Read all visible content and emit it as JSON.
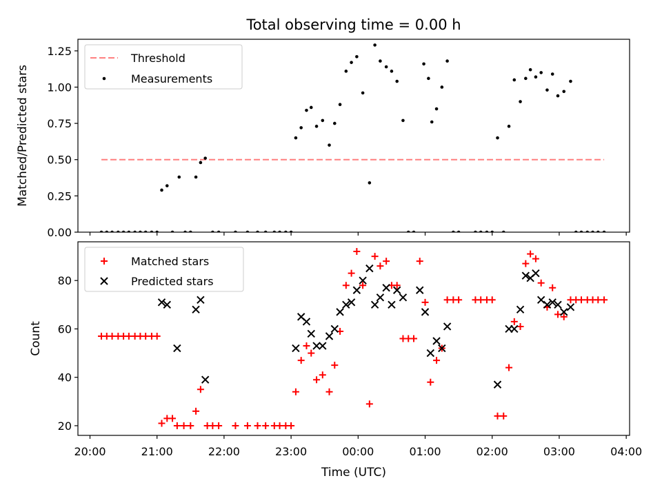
{
  "figure": {
    "title": "Total observing time = 0.00 h",
    "xlabel": "Time (UTC)"
  },
  "chart_data": [
    {
      "type": "scatter",
      "panel": "top",
      "title": "Total observing time = 0.00 h",
      "xlabel": "",
      "ylabel": "Matched/Predicted stars",
      "x_unit": "hours since 20:00 UTC",
      "xlim": [
        -0.18,
        8.05
      ],
      "ylim": [
        0,
        1.33
      ],
      "yticks": [
        0.0,
        0.25,
        0.5,
        0.75,
        1.0,
        1.25
      ],
      "ytick_labels": [
        "0.00",
        "0.25",
        "0.50",
        "0.75",
        "1.00",
        "1.25"
      ],
      "legend": {
        "placement": "top-left",
        "entries": [
          "Threshold",
          "Measurements"
        ]
      },
      "grid": false,
      "threshold": {
        "name": "Threshold",
        "color": "#ff7f7f",
        "style": "dashed",
        "y": 0.5,
        "x": [
          0.17,
          7.67
        ]
      },
      "series": [
        {
          "name": "Measurements",
          "color": "#000000",
          "marker": "dot",
          "points": [
            [
              0.17,
              0
            ],
            [
              0.25,
              0
            ],
            [
              0.33,
              0
            ],
            [
              0.42,
              0
            ],
            [
              0.5,
              0
            ],
            [
              0.58,
              0
            ],
            [
              0.67,
              0
            ],
            [
              0.75,
              0
            ],
            [
              0.83,
              0
            ],
            [
              0.92,
              0
            ],
            [
              1.0,
              0
            ],
            [
              1.07,
              0.29
            ],
            [
              1.15,
              0.32
            ],
            [
              1.23,
              0
            ],
            [
              1.33,
              0.38
            ],
            [
              1.42,
              0
            ],
            [
              1.5,
              0
            ],
            [
              1.58,
              0.38
            ],
            [
              1.65,
              0.48
            ],
            [
              1.72,
              0.51
            ],
            [
              1.83,
              0
            ],
            [
              1.92,
              0
            ],
            [
              2.17,
              0
            ],
            [
              2.35,
              0
            ],
            [
              2.5,
              0
            ],
            [
              2.62,
              0
            ],
            [
              2.75,
              0
            ],
            [
              2.83,
              0
            ],
            [
              2.92,
              0
            ],
            [
              3.0,
              0
            ],
            [
              3.07,
              0.65
            ],
            [
              3.15,
              0.72
            ],
            [
              3.23,
              0.84
            ],
            [
              3.3,
              0.86
            ],
            [
              3.38,
              0.73
            ],
            [
              3.47,
              0.77
            ],
            [
              3.57,
              0.6
            ],
            [
              3.65,
              0.75
            ],
            [
              3.73,
              0.88
            ],
            [
              3.82,
              1.11
            ],
            [
              3.9,
              1.17
            ],
            [
              3.98,
              1.21
            ],
            [
              4.07,
              0.96
            ],
            [
              4.17,
              0.34
            ],
            [
              4.25,
              1.29
            ],
            [
              4.33,
              1.18
            ],
            [
              4.42,
              1.14
            ],
            [
              4.5,
              1.11
            ],
            [
              4.58,
              1.04
            ],
            [
              4.67,
              0.77
            ],
            [
              4.75,
              0
            ],
            [
              4.83,
              0
            ],
            [
              4.98,
              1.16
            ],
            [
              5.05,
              1.06
            ],
            [
              5.1,
              0.76
            ],
            [
              5.17,
              0.85
            ],
            [
              5.25,
              1.0
            ],
            [
              5.33,
              1.18
            ],
            [
              5.42,
              0
            ],
            [
              5.5,
              0
            ],
            [
              5.75,
              0
            ],
            [
              5.83,
              0
            ],
            [
              5.92,
              0
            ],
            [
              6.0,
              0
            ],
            [
              6.08,
              0.65
            ],
            [
              6.17,
              0
            ],
            [
              6.25,
              0.73
            ],
            [
              6.33,
              1.05
            ],
            [
              6.42,
              0.9
            ],
            [
              6.5,
              1.06
            ],
            [
              6.57,
              1.12
            ],
            [
              6.65,
              1.07
            ],
            [
              6.73,
              1.1
            ],
            [
              6.82,
              0.98
            ],
            [
              6.9,
              1.09
            ],
            [
              6.98,
              0.94
            ],
            [
              7.07,
              0.97
            ],
            [
              7.17,
              1.04
            ],
            [
              7.25,
              0
            ],
            [
              7.33,
              0
            ],
            [
              7.42,
              0
            ],
            [
              7.5,
              0
            ],
            [
              7.58,
              0
            ],
            [
              7.67,
              0
            ]
          ]
        }
      ]
    },
    {
      "type": "scatter",
      "panel": "bottom",
      "xlabel": "Time (UTC)",
      "ylabel": "Count",
      "x_unit": "hours since 20:00 UTC",
      "xlim": [
        -0.18,
        8.05
      ],
      "ylim": [
        16,
        96
      ],
      "xticks": [
        0,
        1,
        2,
        3,
        4,
        5,
        6,
        7,
        8
      ],
      "xtick_labels": [
        "20:00",
        "21:00",
        "22:00",
        "23:00",
        "00:00",
        "01:00",
        "02:00",
        "03:00",
        "04:00"
      ],
      "yticks": [
        20,
        40,
        60,
        80
      ],
      "ytick_labels": [
        "20",
        "40",
        "60",
        "80"
      ],
      "legend": {
        "placement": "top-left",
        "entries": [
          "Matched stars",
          "Predicted stars"
        ]
      },
      "grid": false,
      "series": [
        {
          "name": "Matched stars",
          "color": "#ff0000",
          "marker": "plus",
          "points": [
            [
              0.17,
              57
            ],
            [
              0.25,
              57
            ],
            [
              0.33,
              57
            ],
            [
              0.42,
              57
            ],
            [
              0.5,
              57
            ],
            [
              0.58,
              57
            ],
            [
              0.67,
              57
            ],
            [
              0.75,
              57
            ],
            [
              0.83,
              57
            ],
            [
              0.92,
              57
            ],
            [
              1.0,
              57
            ],
            [
              1.07,
              21
            ],
            [
              1.15,
              23
            ],
            [
              1.23,
              23
            ],
            [
              1.3,
              20
            ],
            [
              1.4,
              20
            ],
            [
              1.5,
              20
            ],
            [
              1.58,
              26
            ],
            [
              1.65,
              35
            ],
            [
              1.75,
              20
            ],
            [
              1.83,
              20
            ],
            [
              1.92,
              20
            ],
            [
              2.17,
              20
            ],
            [
              2.35,
              20
            ],
            [
              2.5,
              20
            ],
            [
              2.62,
              20
            ],
            [
              2.75,
              20
            ],
            [
              2.83,
              20
            ],
            [
              2.92,
              20
            ],
            [
              3.0,
              20
            ],
            [
              3.07,
              34
            ],
            [
              3.15,
              47
            ],
            [
              3.23,
              53
            ],
            [
              3.3,
              50
            ],
            [
              3.38,
              39
            ],
            [
              3.47,
              41
            ],
            [
              3.57,
              34
            ],
            [
              3.65,
              45
            ],
            [
              3.73,
              59
            ],
            [
              3.82,
              78
            ],
            [
              3.9,
              83
            ],
            [
              3.98,
              92
            ],
            [
              4.07,
              78
            ],
            [
              4.17,
              29
            ],
            [
              4.25,
              90
            ],
            [
              4.33,
              86
            ],
            [
              4.42,
              88
            ],
            [
              4.5,
              78
            ],
            [
              4.58,
              78
            ],
            [
              4.67,
              56
            ],
            [
              4.75,
              56
            ],
            [
              4.83,
              56
            ],
            [
              4.92,
              88
            ],
            [
              5.0,
              71
            ],
            [
              5.08,
              38
            ],
            [
              5.17,
              47
            ],
            [
              5.25,
              52
            ],
            [
              5.33,
              72
            ],
            [
              5.42,
              72
            ],
            [
              5.5,
              72
            ],
            [
              5.75,
              72
            ],
            [
              5.83,
              72
            ],
            [
              5.92,
              72
            ],
            [
              6.0,
              72
            ],
            [
              6.08,
              24
            ],
            [
              6.17,
              24
            ],
            [
              6.25,
              44
            ],
            [
              6.33,
              63
            ],
            [
              6.42,
              61
            ],
            [
              6.5,
              87
            ],
            [
              6.57,
              91
            ],
            [
              6.65,
              89
            ],
            [
              6.73,
              79
            ],
            [
              6.82,
              69
            ],
            [
              6.9,
              77
            ],
            [
              6.98,
              66
            ],
            [
              7.07,
              65
            ],
            [
              7.17,
              72
            ],
            [
              7.25,
              72
            ],
            [
              7.33,
              72
            ],
            [
              7.42,
              72
            ],
            [
              7.5,
              72
            ],
            [
              7.58,
              72
            ],
            [
              7.67,
              72
            ]
          ]
        },
        {
          "name": "Predicted stars",
          "color": "#000000",
          "marker": "x",
          "points": [
            [
              1.07,
              71
            ],
            [
              1.15,
              70
            ],
            [
              1.3,
              52
            ],
            [
              1.58,
              68
            ],
            [
              1.65,
              72
            ],
            [
              1.72,
              39
            ],
            [
              3.07,
              52
            ],
            [
              3.15,
              65
            ],
            [
              3.23,
              63
            ],
            [
              3.3,
              58
            ],
            [
              3.38,
              53
            ],
            [
              3.47,
              53
            ],
            [
              3.57,
              57
            ],
            [
              3.65,
              60
            ],
            [
              3.73,
              67
            ],
            [
              3.82,
              70
            ],
            [
              3.9,
              71
            ],
            [
              3.98,
              76
            ],
            [
              4.07,
              80
            ],
            [
              4.17,
              85
            ],
            [
              4.25,
              70
            ],
            [
              4.33,
              73
            ],
            [
              4.42,
              77
            ],
            [
              4.5,
              70
            ],
            [
              4.58,
              76
            ],
            [
              4.67,
              73
            ],
            [
              4.92,
              76
            ],
            [
              5.0,
              67
            ],
            [
              5.08,
              50
            ],
            [
              5.17,
              55
            ],
            [
              5.25,
              52
            ],
            [
              5.33,
              61
            ],
            [
              6.08,
              37
            ],
            [
              6.25,
              60
            ],
            [
              6.33,
              60
            ],
            [
              6.42,
              68
            ],
            [
              6.5,
              82
            ],
            [
              6.57,
              81
            ],
            [
              6.65,
              83
            ],
            [
              6.73,
              72
            ],
            [
              6.82,
              70
            ],
            [
              6.9,
              71
            ],
            [
              6.98,
              70
            ],
            [
              7.07,
              67
            ],
            [
              7.17,
              69
            ]
          ]
        }
      ]
    }
  ]
}
